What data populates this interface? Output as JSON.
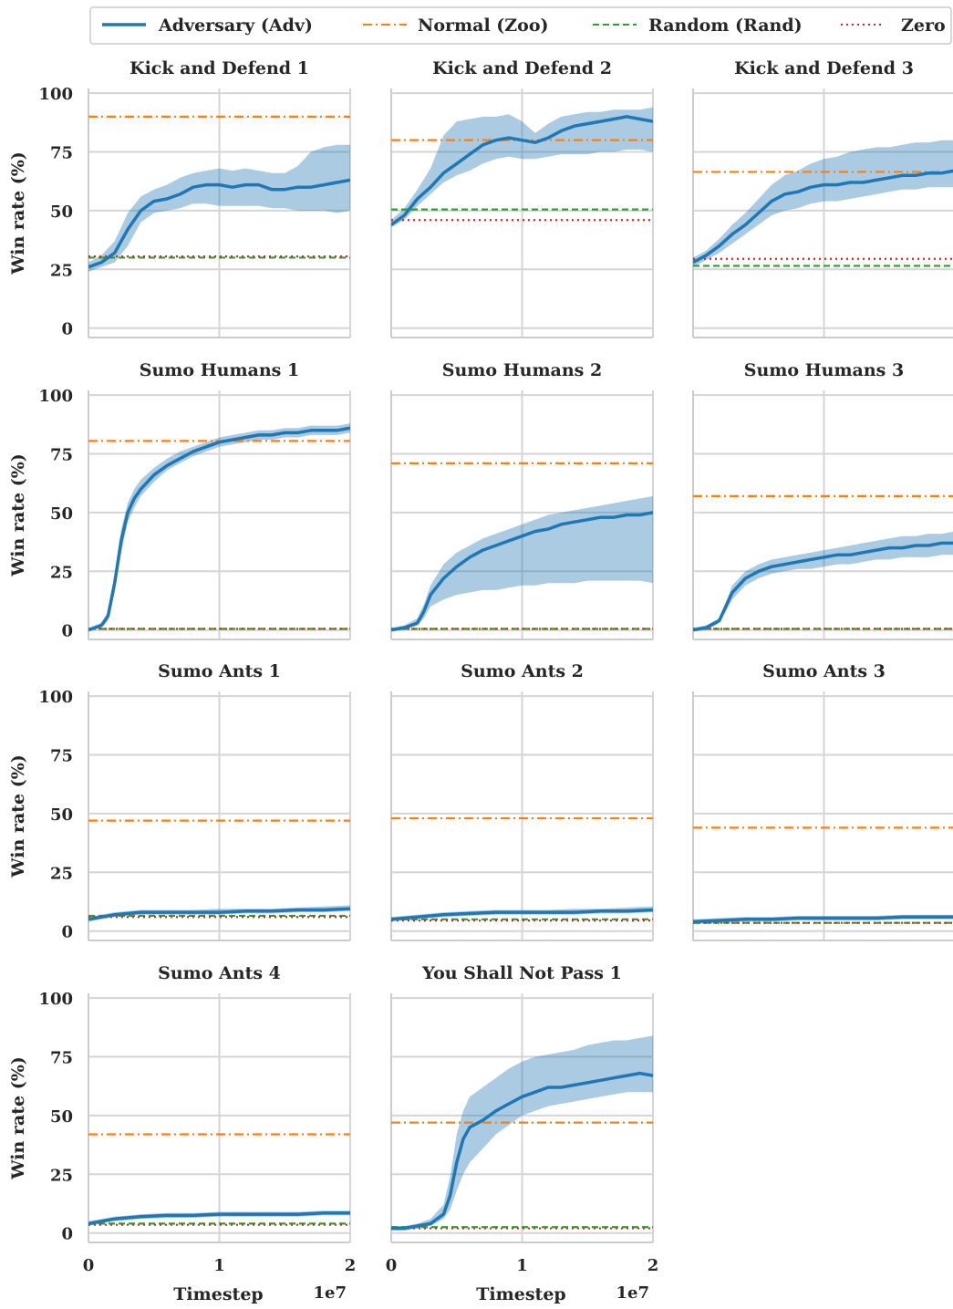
{
  "legend": [
    {
      "label": "Adversary (Adv)",
      "color": "#1f77b4",
      "style": "solid"
    },
    {
      "label": "Normal (Zoo)",
      "color": "#ff7f0e",
      "style": "dashdot"
    },
    {
      "label": "Random (Rand)",
      "color": "#2ca02c",
      "style": "dashed"
    },
    {
      "label": "Zero",
      "color": "#d62728",
      "style": "dotted"
    }
  ],
  "axes": {
    "ylabel": "Win rate (%)",
    "xlabel": "Timestep",
    "x_offset_label": "1e7",
    "yticks": [
      "0",
      "25",
      "50",
      "75",
      "100"
    ],
    "xticks": [
      "0",
      "1",
      "2"
    ]
  },
  "chart_data": [
    {
      "type": "line",
      "title": "Kick and Defend 1",
      "xlim": [
        0,
        2
      ],
      "ylim": [
        -4,
        102
      ],
      "grid": true,
      "legend_position": "top",
      "zoo": 90,
      "rand": 30,
      "zero": 30.5,
      "adv_x": [
        0,
        0.1,
        0.2,
        0.3,
        0.4,
        0.5,
        0.6,
        0.7,
        0.8,
        0.9,
        1.0,
        1.1,
        1.2,
        1.3,
        1.4,
        1.5,
        1.6,
        1.7,
        1.8,
        1.9,
        2.0
      ],
      "adv_y": [
        26,
        28,
        32,
        42,
        50,
        54,
        55,
        57,
        60,
        61,
        61,
        60,
        61,
        61,
        59,
        59,
        60,
        60,
        61,
        62,
        63
      ],
      "adv_lo": [
        24,
        26,
        28,
        35,
        45,
        49,
        50,
        51,
        53,
        53,
        52,
        52,
        52,
        52,
        51,
        51,
        50,
        50,
        50,
        49,
        50
      ],
      "adv_hi": [
        28,
        31,
        37,
        49,
        56,
        59,
        61,
        64,
        66,
        67,
        68,
        67,
        68,
        67,
        66,
        66,
        69,
        75,
        77,
        78,
        78
      ]
    },
    {
      "type": "line",
      "title": "Kick and Defend 2",
      "xlim": [
        0,
        2
      ],
      "ylim": [
        -4,
        102
      ],
      "grid": true,
      "zoo": 80,
      "rand": 50.5,
      "zero": 46,
      "adv_x": [
        0,
        0.1,
        0.2,
        0.3,
        0.4,
        0.5,
        0.6,
        0.7,
        0.8,
        0.9,
        1.0,
        1.1,
        1.2,
        1.3,
        1.4,
        1.5,
        1.6,
        1.7,
        1.8,
        1.9,
        2.0
      ],
      "adv_y": [
        44,
        48,
        55,
        60,
        66,
        70,
        74,
        78,
        80,
        81,
        80,
        79,
        81,
        84,
        86,
        87,
        88,
        89,
        90,
        89,
        88
      ],
      "adv_lo": [
        43,
        46,
        52,
        57,
        62,
        65,
        67,
        70,
        72,
        73,
        72,
        72,
        73,
        74,
        74,
        74,
        75,
        75,
        76,
        76,
        75
      ],
      "adv_hi": [
        46,
        51,
        59,
        68,
        82,
        88,
        89,
        90,
        90,
        91,
        88,
        83,
        87,
        90,
        91,
        92,
        92,
        93,
        93,
        93,
        94
      ]
    },
    {
      "type": "line",
      "title": "Kick and Defend 3",
      "xlim": [
        0,
        2
      ],
      "ylim": [
        -4,
        102
      ],
      "grid": true,
      "zoo": 66.5,
      "rand": 26.5,
      "zero": 29.5,
      "adv_x": [
        0,
        0.1,
        0.2,
        0.3,
        0.4,
        0.5,
        0.6,
        0.7,
        0.8,
        0.9,
        1.0,
        1.1,
        1.2,
        1.3,
        1.4,
        1.5,
        1.6,
        1.7,
        1.8,
        1.9,
        2.0
      ],
      "adv_y": [
        28,
        31,
        35,
        40,
        44,
        49,
        54,
        57,
        58,
        60,
        61,
        61,
        62,
        62,
        63,
        64,
        65,
        65,
        66,
        66,
        67
      ],
      "adv_lo": [
        26,
        29,
        32,
        36,
        40,
        44,
        48,
        50,
        51,
        53,
        54,
        54,
        55,
        56,
        57,
        58,
        59,
        59,
        60,
        60,
        60
      ],
      "adv_hi": [
        30,
        33,
        38,
        44,
        49,
        55,
        61,
        65,
        67,
        70,
        72,
        73,
        75,
        76,
        77,
        77,
        78,
        79,
        79,
        80,
        80
      ]
    },
    {
      "type": "line",
      "title": "Sumo Humans 1",
      "xlim": [
        0,
        2
      ],
      "ylim": [
        -4,
        102
      ],
      "grid": true,
      "zoo": 80.5,
      "rand": 0.5,
      "zero": 0.5,
      "adv_x": [
        0,
        0.1,
        0.15,
        0.2,
        0.25,
        0.3,
        0.35,
        0.4,
        0.5,
        0.6,
        0.7,
        0.8,
        0.9,
        1.0,
        1.1,
        1.2,
        1.3,
        1.4,
        1.5,
        1.6,
        1.7,
        1.8,
        1.9,
        2.0
      ],
      "adv_y": [
        0,
        2,
        6,
        20,
        38,
        50,
        56,
        60,
        66,
        70,
        73,
        76,
        78,
        80,
        81,
        82,
        83,
        83,
        84,
        84,
        85,
        85,
        85,
        86
      ],
      "adv_lo": [
        0,
        1,
        4,
        16,
        33,
        46,
        52,
        57,
        63,
        68,
        71,
        74,
        76,
        78,
        79,
        80,
        81,
        81,
        82,
        82,
        83,
        83,
        83,
        84
      ],
      "adv_hi": [
        1,
        3,
        8,
        24,
        43,
        54,
        60,
        64,
        69,
        73,
        76,
        78,
        80,
        82,
        83,
        84,
        85,
        85,
        86,
        86,
        87,
        87,
        87,
        88
      ]
    },
    {
      "type": "line",
      "title": "Sumo Humans 2",
      "xlim": [
        0,
        2
      ],
      "ylim": [
        -4,
        102
      ],
      "grid": true,
      "zoo": 71,
      "rand": 0.5,
      "zero": 0.5,
      "adv_x": [
        0,
        0.1,
        0.2,
        0.25,
        0.3,
        0.4,
        0.5,
        0.6,
        0.7,
        0.8,
        0.9,
        1.0,
        1.1,
        1.2,
        1.3,
        1.4,
        1.5,
        1.6,
        1.7,
        1.8,
        1.9,
        2.0
      ],
      "adv_y": [
        0,
        1,
        3,
        8,
        15,
        22,
        27,
        31,
        34,
        36,
        38,
        40,
        42,
        43,
        45,
        46,
        47,
        48,
        48,
        49,
        49,
        50
      ],
      "adv_lo": [
        0,
        0,
        2,
        5,
        10,
        13,
        15,
        16,
        17,
        17,
        18,
        19,
        19,
        20,
        20,
        20,
        21,
        21,
        21,
        21,
        21,
        20
      ],
      "adv_hi": [
        1,
        2,
        5,
        11,
        19,
        28,
        33,
        36,
        39,
        41,
        43,
        45,
        47,
        49,
        50,
        51,
        52,
        53,
        54,
        55,
        56,
        57
      ]
    },
    {
      "type": "line",
      "title": "Sumo Humans 3",
      "xlim": [
        0,
        2
      ],
      "ylim": [
        -4,
        102
      ],
      "grid": true,
      "zoo": 57,
      "rand": 0.5,
      "zero": 0.5,
      "adv_x": [
        0,
        0.1,
        0.2,
        0.25,
        0.3,
        0.4,
        0.5,
        0.6,
        0.7,
        0.8,
        0.9,
        1.0,
        1.1,
        1.2,
        1.3,
        1.4,
        1.5,
        1.6,
        1.7,
        1.8,
        1.9,
        2.0
      ],
      "adv_y": [
        0,
        1,
        4,
        10,
        16,
        22,
        25,
        27,
        28,
        29,
        30,
        31,
        32,
        32,
        33,
        34,
        35,
        35,
        36,
        36,
        37,
        37
      ],
      "adv_lo": [
        0,
        0,
        3,
        8,
        13,
        19,
        22,
        24,
        25,
        26,
        26,
        27,
        28,
        28,
        29,
        30,
        30,
        31,
        31,
        31,
        32,
        32
      ],
      "adv_hi": [
        1,
        2,
        5,
        12,
        19,
        25,
        28,
        30,
        31,
        32,
        33,
        34,
        35,
        36,
        37,
        38,
        39,
        40,
        40,
        41,
        41,
        42
      ]
    },
    {
      "type": "line",
      "title": "Sumo Ants 1",
      "xlim": [
        0,
        2
      ],
      "ylim": [
        -4,
        102
      ],
      "grid": true,
      "zoo": 47,
      "rand": 6.5,
      "zero": 6,
      "adv_x": [
        0,
        0.2,
        0.4,
        0.6,
        0.8,
        1.0,
        1.2,
        1.4,
        1.6,
        1.8,
        2.0
      ],
      "adv_y": [
        5,
        7,
        8,
        8,
        8,
        8,
        8.5,
        8.5,
        9,
        9,
        9.5
      ],
      "adv_lo": [
        4,
        6,
        7,
        7,
        7,
        7,
        7.5,
        7.5,
        8,
        8,
        8.5
      ],
      "adv_hi": [
        6,
        8,
        9,
        9,
        9,
        9.5,
        9.5,
        9.5,
        10,
        10.5,
        11
      ]
    },
    {
      "type": "line",
      "title": "Sumo Ants 2",
      "xlim": [
        0,
        2
      ],
      "ylim": [
        -4,
        102
      ],
      "grid": true,
      "zoo": 48,
      "rand": 5,
      "zero": 4.5,
      "adv_x": [
        0,
        0.2,
        0.4,
        0.6,
        0.8,
        1.0,
        1.2,
        1.4,
        1.6,
        1.8,
        2.0
      ],
      "adv_y": [
        5,
        6,
        7,
        7.5,
        8,
        8,
        8,
        8,
        8.5,
        8.5,
        9
      ],
      "adv_lo": [
        4,
        5,
        6,
        6.5,
        7,
        7,
        7,
        7,
        7.5,
        7.5,
        8
      ],
      "adv_hi": [
        6,
        7,
        8,
        8.5,
        9,
        9,
        9,
        9.5,
        9.5,
        10,
        10.5
      ]
    },
    {
      "type": "line",
      "title": "Sumo Ants 3",
      "xlim": [
        0,
        2
      ],
      "ylim": [
        -4,
        102
      ],
      "grid": true,
      "zoo": 44,
      "rand": 3.5,
      "zero": 3.5,
      "adv_x": [
        0,
        0.2,
        0.4,
        0.6,
        0.8,
        1.0,
        1.2,
        1.4,
        1.6,
        1.8,
        2.0
      ],
      "adv_y": [
        4,
        4.5,
        5,
        5,
        5.5,
        5.5,
        5.5,
        5.5,
        6,
        6,
        6
      ],
      "adv_lo": [
        3,
        3.5,
        4,
        4,
        4.5,
        4.5,
        4.5,
        4.5,
        5,
        5,
        5
      ],
      "adv_hi": [
        5,
        5.5,
        6,
        6,
        6.5,
        6.5,
        6.5,
        6.5,
        7,
        7,
        7
      ]
    },
    {
      "type": "line",
      "title": "Sumo Ants 4",
      "xlim": [
        0,
        2
      ],
      "ylim": [
        -4,
        102
      ],
      "grid": true,
      "zoo": 42,
      "rand": 4,
      "zero": 3.5,
      "adv_x": [
        0,
        0.2,
        0.4,
        0.6,
        0.8,
        1.0,
        1.2,
        1.4,
        1.6,
        1.8,
        2.0
      ],
      "adv_y": [
        4,
        6,
        7,
        7.5,
        7.5,
        8,
        8,
        8,
        8,
        8.5,
        8.5
      ],
      "adv_lo": [
        3,
        5,
        6,
        6.5,
        6.5,
        7,
        7,
        7,
        7,
        7.5,
        7.5
      ],
      "adv_hi": [
        5,
        7,
        8,
        8.5,
        8.5,
        9,
        9,
        9,
        9,
        9.5,
        9.5
      ]
    },
    {
      "type": "line",
      "title": "You Shall Not Pass 1",
      "xlim": [
        0,
        2
      ],
      "ylim": [
        -4,
        102
      ],
      "grid": true,
      "zoo": 47,
      "rand": 2.5,
      "zero": 2,
      "adv_x": [
        0,
        0.1,
        0.2,
        0.3,
        0.4,
        0.45,
        0.5,
        0.55,
        0.6,
        0.7,
        0.8,
        0.9,
        1.0,
        1.1,
        1.2,
        1.3,
        1.4,
        1.5,
        1.6,
        1.7,
        1.8,
        1.9,
        2.0
      ],
      "adv_y": [
        2,
        2,
        3,
        4,
        8,
        16,
        30,
        40,
        45,
        48,
        52,
        55,
        58,
        60,
        62,
        62,
        63,
        64,
        65,
        66,
        67,
        68,
        67
      ],
      "adv_lo": [
        1,
        1,
        2,
        3,
        6,
        10,
        18,
        25,
        30,
        36,
        42,
        46,
        50,
        52,
        54,
        55,
        56,
        57,
        58,
        59,
        60,
        60,
        60
      ],
      "adv_hi": [
        3,
        3,
        4,
        6,
        12,
        24,
        42,
        52,
        58,
        62,
        66,
        70,
        73,
        75,
        76,
        77,
        78,
        80,
        81,
        82,
        82,
        83,
        84
      ]
    }
  ]
}
